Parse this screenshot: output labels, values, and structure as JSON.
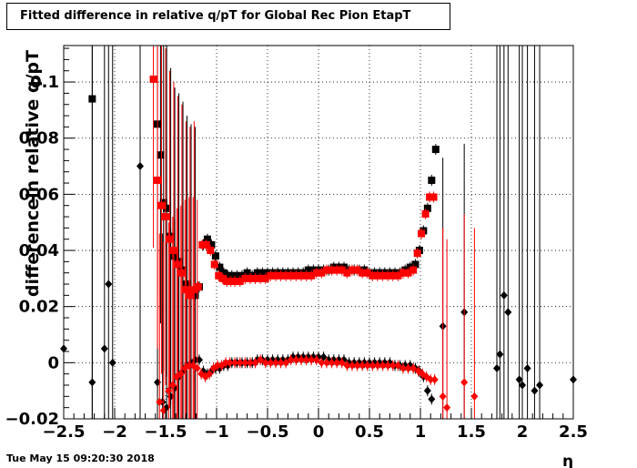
{
  "title": "Fitted difference in relative q/pT for Global Rec Pion EtapT",
  "footer": "Tue May 15 09:20:30 2018",
  "colors": {
    "black_series": "#000000",
    "red_series": "#ff0000",
    "grid": "#000000"
  },
  "chart_data": {
    "type": "scatter",
    "title": "Fitted difference in relative q/pT for Global Rec Pion EtapT",
    "xlabel": "η",
    "ylabel": "differencein relative q/pT",
    "xlim": [
      -2.5,
      2.5
    ],
    "ylim": [
      -0.02,
      0.113
    ],
    "grid": true,
    "x_ticks": [
      -2.5,
      -2,
      -1.5,
      -1,
      -0.5,
      0,
      0.5,
      1,
      1.5,
      2,
      2.5
    ],
    "x_tick_labels": [
      "−2.5",
      "−2",
      "−1.5",
      "−1",
      "−0.5",
      "0",
      "0.5",
      "1",
      "1.5",
      "2",
      "2.5"
    ],
    "y_ticks": [
      -0.02,
      0,
      0.02,
      0.04,
      0.06,
      0.08,
      0.1
    ],
    "y_tick_labels": [
      "−0.02",
      "0",
      "0.02",
      "0.04",
      "0.06",
      "0.08",
      "0.1"
    ],
    "series": [
      {
        "marker": "square",
        "color": "#000000",
        "points": [
          [
            -2.22,
            0.094
          ],
          [
            -1.58,
            0.085
          ],
          [
            -1.55,
            0.074
          ],
          [
            -1.52,
            0.057
          ],
          [
            -1.49,
            0.055
          ],
          [
            -1.45,
            0.045
          ],
          [
            -1.41,
            0.038
          ],
          [
            -1.37,
            0.036
          ],
          [
            -1.33,
            0.033
          ],
          [
            -1.29,
            0.028
          ],
          [
            -1.25,
            0.025
          ],
          [
            -1.21,
            0.024
          ],
          [
            -1.17,
            0.027
          ],
          [
            -1.13,
            0.042
          ],
          [
            -1.09,
            0.044
          ],
          [
            -1.05,
            0.042
          ],
          [
            -1.01,
            0.038
          ],
          [
            -0.97,
            0.034
          ],
          [
            -0.93,
            0.032
          ],
          [
            -0.89,
            0.031
          ],
          [
            -0.85,
            0.031
          ],
          [
            -0.8,
            0.031
          ],
          [
            -0.75,
            0.031
          ],
          [
            -0.7,
            0.032
          ],
          [
            -0.65,
            0.031
          ],
          [
            -0.6,
            0.032
          ],
          [
            -0.55,
            0.032
          ],
          [
            -0.5,
            0.032
          ],
          [
            -0.45,
            0.032
          ],
          [
            -0.4,
            0.032
          ],
          [
            -0.35,
            0.032
          ],
          [
            -0.3,
            0.032
          ],
          [
            -0.25,
            0.032
          ],
          [
            -0.2,
            0.032
          ],
          [
            -0.15,
            0.032
          ],
          [
            -0.1,
            0.033
          ],
          [
            -0.05,
            0.033
          ],
          [
            0.0,
            0.033
          ],
          [
            0.05,
            0.033
          ],
          [
            0.1,
            0.033
          ],
          [
            0.15,
            0.034
          ],
          [
            0.2,
            0.034
          ],
          [
            0.25,
            0.034
          ],
          [
            0.3,
            0.033
          ],
          [
            0.35,
            0.033
          ],
          [
            0.4,
            0.033
          ],
          [
            0.45,
            0.033
          ],
          [
            0.5,
            0.032
          ],
          [
            0.55,
            0.032
          ],
          [
            0.6,
            0.032
          ],
          [
            0.65,
            0.032
          ],
          [
            0.7,
            0.032
          ],
          [
            0.75,
            0.032
          ],
          [
            0.8,
            0.032
          ],
          [
            0.85,
            0.033
          ],
          [
            0.9,
            0.034
          ],
          [
            0.95,
            0.035
          ],
          [
            0.99,
            0.04
          ],
          [
            1.03,
            0.047
          ],
          [
            1.07,
            0.055
          ],
          [
            1.11,
            0.065
          ],
          [
            1.15,
            0.076
          ]
        ]
      },
      {
        "marker": "diamond",
        "color": "#000000",
        "points": [
          [
            -2.5,
            0.005
          ],
          [
            -2.22,
            -0.007
          ],
          [
            -2.1,
            0.005
          ],
          [
            -2.06,
            0.028
          ],
          [
            -2.02,
            0.0
          ],
          [
            -1.75,
            0.07
          ],
          [
            -1.58,
            -0.007
          ],
          [
            -1.53,
            -0.014
          ],
          [
            -1.49,
            -0.016
          ],
          [
            -1.45,
            -0.012
          ],
          [
            -1.41,
            -0.009
          ],
          [
            -1.37,
            -0.005
          ],
          [
            -1.33,
            -0.003
          ],
          [
            -1.29,
            -0.001
          ],
          [
            -1.25,
            0.0
          ],
          [
            -1.21,
            0.001
          ],
          [
            -1.17,
            0.001
          ],
          [
            -1.13,
            -0.003
          ],
          [
            -1.09,
            -0.004
          ],
          [
            -1.05,
            -0.003
          ],
          [
            -1.01,
            -0.002
          ],
          [
            -0.97,
            -0.002
          ],
          [
            -0.93,
            -0.001
          ],
          [
            -0.89,
            -0.001
          ],
          [
            -0.85,
            0.0
          ],
          [
            -0.8,
            0.0
          ],
          [
            -0.75,
            0.0
          ],
          [
            -0.7,
            0.0
          ],
          [
            -0.65,
            0.0
          ],
          [
            -0.6,
            0.001
          ],
          [
            -0.55,
            0.001
          ],
          [
            -0.5,
            0.001
          ],
          [
            -0.45,
            0.001
          ],
          [
            -0.4,
            0.001
          ],
          [
            -0.35,
            0.001
          ],
          [
            -0.3,
            0.001
          ],
          [
            -0.25,
            0.002
          ],
          [
            -0.2,
            0.002
          ],
          [
            -0.15,
            0.002
          ],
          [
            -0.1,
            0.002
          ],
          [
            -0.05,
            0.002
          ],
          [
            0.0,
            0.002
          ],
          [
            0.05,
            0.002
          ],
          [
            0.1,
            0.001
          ],
          [
            0.15,
            0.001
          ],
          [
            0.2,
            0.001
          ],
          [
            0.25,
            0.001
          ],
          [
            0.3,
            0.0
          ],
          [
            0.35,
            0.0
          ],
          [
            0.4,
            0.0
          ],
          [
            0.45,
            0.0
          ],
          [
            0.5,
            0.0
          ],
          [
            0.55,
            0.0
          ],
          [
            0.6,
            0.0
          ],
          [
            0.65,
            0.0
          ],
          [
            0.7,
            0.0
          ],
          [
            0.75,
            -0.001
          ],
          [
            0.8,
            -0.001
          ],
          [
            0.85,
            -0.001
          ],
          [
            0.9,
            -0.001
          ],
          [
            0.95,
            -0.002
          ],
          [
            0.99,
            -0.003
          ],
          [
            1.03,
            -0.005
          ],
          [
            1.07,
            -0.01
          ],
          [
            1.11,
            -0.013
          ],
          [
            1.22,
            0.013
          ],
          [
            1.43,
            0.018
          ],
          [
            1.75,
            -0.002
          ],
          [
            1.78,
            0.003
          ],
          [
            1.82,
            0.024
          ],
          [
            1.86,
            0.018
          ],
          [
            1.97,
            -0.006
          ],
          [
            2.0,
            -0.008
          ],
          [
            2.05,
            -0.002
          ],
          [
            2.12,
            -0.01
          ],
          [
            2.17,
            -0.008
          ],
          [
            2.5,
            -0.006
          ]
        ]
      },
      {
        "marker": "square",
        "color": "#ff0000",
        "points": [
          [
            -1.62,
            0.101
          ],
          [
            -1.58,
            0.065
          ],
          [
            -1.54,
            0.056
          ],
          [
            -1.5,
            0.052
          ],
          [
            -1.46,
            0.044
          ],
          [
            -1.42,
            0.04
          ],
          [
            -1.38,
            0.035
          ],
          [
            -1.34,
            0.032
          ],
          [
            -1.3,
            0.026
          ],
          [
            -1.26,
            0.024
          ],
          [
            -1.22,
            0.026
          ],
          [
            -1.18,
            0.027
          ],
          [
            -1.14,
            0.042
          ],
          [
            -1.1,
            0.042
          ],
          [
            -1.06,
            0.04
          ],
          [
            -1.02,
            0.035
          ],
          [
            -0.98,
            0.031
          ],
          [
            -0.94,
            0.03
          ],
          [
            -0.9,
            0.029
          ],
          [
            -0.86,
            0.029
          ],
          [
            -0.82,
            0.029
          ],
          [
            -0.77,
            0.029
          ],
          [
            -0.72,
            0.03
          ],
          [
            -0.67,
            0.03
          ],
          [
            -0.62,
            0.03
          ],
          [
            -0.57,
            0.03
          ],
          [
            -0.52,
            0.03
          ],
          [
            -0.47,
            0.031
          ],
          [
            -0.42,
            0.031
          ],
          [
            -0.37,
            0.031
          ],
          [
            -0.32,
            0.031
          ],
          [
            -0.27,
            0.031
          ],
          [
            -0.22,
            0.031
          ],
          [
            -0.17,
            0.031
          ],
          [
            -0.12,
            0.031
          ],
          [
            -0.07,
            0.031
          ],
          [
            -0.02,
            0.032
          ],
          [
            0.03,
            0.032
          ],
          [
            0.08,
            0.033
          ],
          [
            0.13,
            0.033
          ],
          [
            0.18,
            0.033
          ],
          [
            0.23,
            0.033
          ],
          [
            0.28,
            0.032
          ],
          [
            0.33,
            0.033
          ],
          [
            0.38,
            0.033
          ],
          [
            0.43,
            0.032
          ],
          [
            0.48,
            0.032
          ],
          [
            0.53,
            0.031
          ],
          [
            0.58,
            0.031
          ],
          [
            0.63,
            0.031
          ],
          [
            0.68,
            0.031
          ],
          [
            0.73,
            0.031
          ],
          [
            0.78,
            0.031
          ],
          [
            0.83,
            0.032
          ],
          [
            0.88,
            0.032
          ],
          [
            0.93,
            0.033
          ],
          [
            0.97,
            0.039
          ],
          [
            1.01,
            0.046
          ],
          [
            1.05,
            0.053
          ],
          [
            1.09,
            0.059
          ],
          [
            1.13,
            0.059
          ]
        ]
      },
      {
        "marker": "diamond",
        "color": "#ff0000",
        "points": [
          [
            -1.56,
            -0.014
          ],
          [
            -1.52,
            -0.017
          ],
          [
            -1.47,
            -0.01
          ],
          [
            -1.43,
            -0.008
          ],
          [
            -1.39,
            -0.005
          ],
          [
            -1.35,
            -0.004
          ],
          [
            -1.31,
            -0.002
          ],
          [
            -1.27,
            -0.001
          ],
          [
            -1.23,
            -0.001
          ],
          [
            -1.19,
            -0.002
          ],
          [
            -1.15,
            -0.004
          ],
          [
            -1.11,
            -0.005
          ],
          [
            -1.07,
            -0.004
          ],
          [
            -1.03,
            -0.002
          ],
          [
            -0.99,
            -0.001
          ],
          [
            -0.95,
            -0.001
          ],
          [
            -0.91,
            0.0
          ],
          [
            -0.87,
            0.0
          ],
          [
            -0.82,
            0.0
          ],
          [
            -0.77,
            0.0
          ],
          [
            -0.72,
            0.0
          ],
          [
            -0.67,
            0.0
          ],
          [
            -0.62,
            0.0
          ],
          [
            -0.57,
            0.001
          ],
          [
            -0.52,
            0.0
          ],
          [
            -0.47,
            0.0
          ],
          [
            -0.42,
            0.0
          ],
          [
            -0.37,
            0.0
          ],
          [
            -0.32,
            0.0
          ],
          [
            -0.27,
            0.001
          ],
          [
            -0.22,
            0.001
          ],
          [
            -0.17,
            0.001
          ],
          [
            -0.12,
            0.001
          ],
          [
            -0.07,
            0.001
          ],
          [
            -0.02,
            0.001
          ],
          [
            0.03,
            0.0
          ],
          [
            0.08,
            0.0
          ],
          [
            0.13,
            0.0
          ],
          [
            0.18,
            0.0
          ],
          [
            0.23,
            0.0
          ],
          [
            0.28,
            -0.001
          ],
          [
            0.33,
            -0.001
          ],
          [
            0.38,
            -0.001
          ],
          [
            0.43,
            -0.001
          ],
          [
            0.48,
            -0.001
          ],
          [
            0.53,
            -0.001
          ],
          [
            0.58,
            -0.001
          ],
          [
            0.63,
            -0.001
          ],
          [
            0.68,
            -0.001
          ],
          [
            0.73,
            -0.001
          ],
          [
            0.78,
            -0.001
          ],
          [
            0.83,
            -0.002
          ],
          [
            0.88,
            -0.002
          ],
          [
            0.93,
            -0.002
          ],
          [
            0.98,
            -0.003
          ],
          [
            1.02,
            -0.004
          ],
          [
            1.06,
            -0.005
          ],
          [
            1.1,
            -0.006
          ],
          [
            1.14,
            -0.006
          ],
          [
            1.22,
            -0.012
          ],
          [
            1.26,
            -0.016
          ],
          [
            1.43,
            -0.007
          ],
          [
            1.53,
            -0.012
          ]
        ]
      }
    ]
  }
}
